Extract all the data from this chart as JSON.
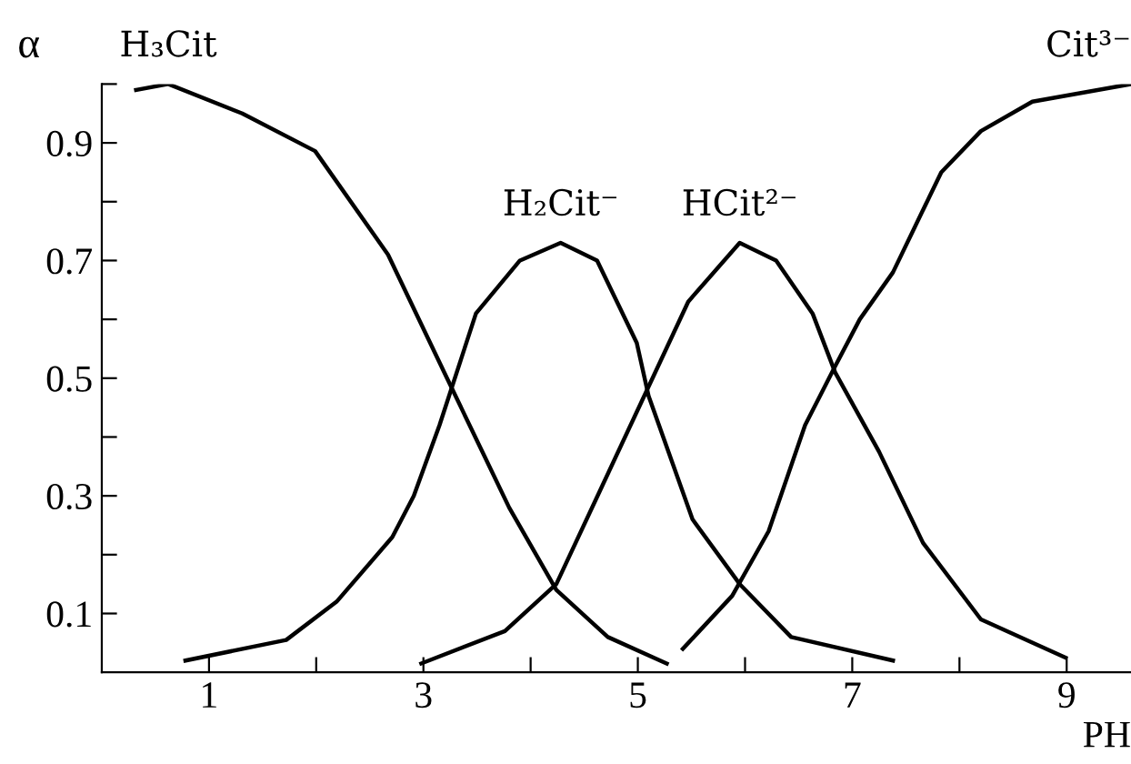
{
  "chart_data": {
    "type": "line",
    "xlabel": "PH",
    "ylabel": "α",
    "xlim": [
      0,
      9.6
    ],
    "ylim": [
      0,
      1.0
    ],
    "xticks": [
      1,
      {
        "value": 2,
        "label": null
      },
      3,
      {
        "value": 4,
        "label": null
      },
      5,
      {
        "value": 6,
        "label": null
      },
      7,
      {
        "value": 8,
        "label": null
      },
      9
    ],
    "yticks": [
      0.1,
      {
        "value": 0.2,
        "label": null
      },
      0.3,
      {
        "value": 0.4,
        "label": null
      },
      0.5,
      {
        "value": 0.6,
        "label": null
      },
      0.7,
      {
        "value": 0.8,
        "label": null
      },
      0.9,
      {
        "value": 1.0,
        "label": null
      }
    ],
    "grid": false,
    "legend": false,
    "marker": "none",
    "line_style": "solid",
    "series": [
      {
        "name": "H₃Cit",
        "color": "#000000",
        "x": [
          0.32,
          0.62,
          1.31,
          1.99,
          2.67,
          3.22,
          3.8,
          4.24,
          4.72,
          5.27
        ],
        "values": [
          0.99,
          1.0,
          0.95,
          0.886,
          0.71,
          0.5,
          0.28,
          0.14,
          0.06,
          0.015
        ]
      },
      {
        "name": "H₂Cit⁻",
        "color": "#000000",
        "x": [
          0.78,
          1.72,
          2.19,
          2.71,
          2.91,
          3.15,
          3.49,
          3.9,
          4.28,
          4.62,
          4.99,
          5.1,
          5.51,
          5.95,
          6.43,
          7.38
        ],
        "values": [
          0.02,
          0.055,
          0.12,
          0.23,
          0.3,
          0.42,
          0.61,
          0.7,
          0.73,
          0.7,
          0.56,
          0.47,
          0.26,
          0.15,
          0.06,
          0.02
        ]
      },
      {
        "name": "HCit²⁻",
        "color": "#000000",
        "x": [
          2.98,
          3.76,
          4.24,
          4.65,
          5.06,
          5.47,
          5.95,
          6.29,
          6.63,
          6.84,
          7.25,
          7.66,
          8.2,
          8.99
        ],
        "values": [
          0.015,
          0.07,
          0.15,
          0.31,
          0.47,
          0.63,
          0.73,
          0.7,
          0.61,
          0.51,
          0.375,
          0.22,
          0.09,
          0.025
        ]
      },
      {
        "name": "Cit³⁻",
        "color": "#000000",
        "x": [
          5.42,
          5.88,
          6.22,
          6.56,
          6.84,
          7.07,
          7.38,
          7.83,
          8.2,
          8.68,
          9.6
        ],
        "values": [
          0.04,
          0.13,
          0.24,
          0.42,
          0.52,
          0.6,
          0.68,
          0.85,
          0.92,
          0.97,
          1.0
        ]
      }
    ]
  }
}
